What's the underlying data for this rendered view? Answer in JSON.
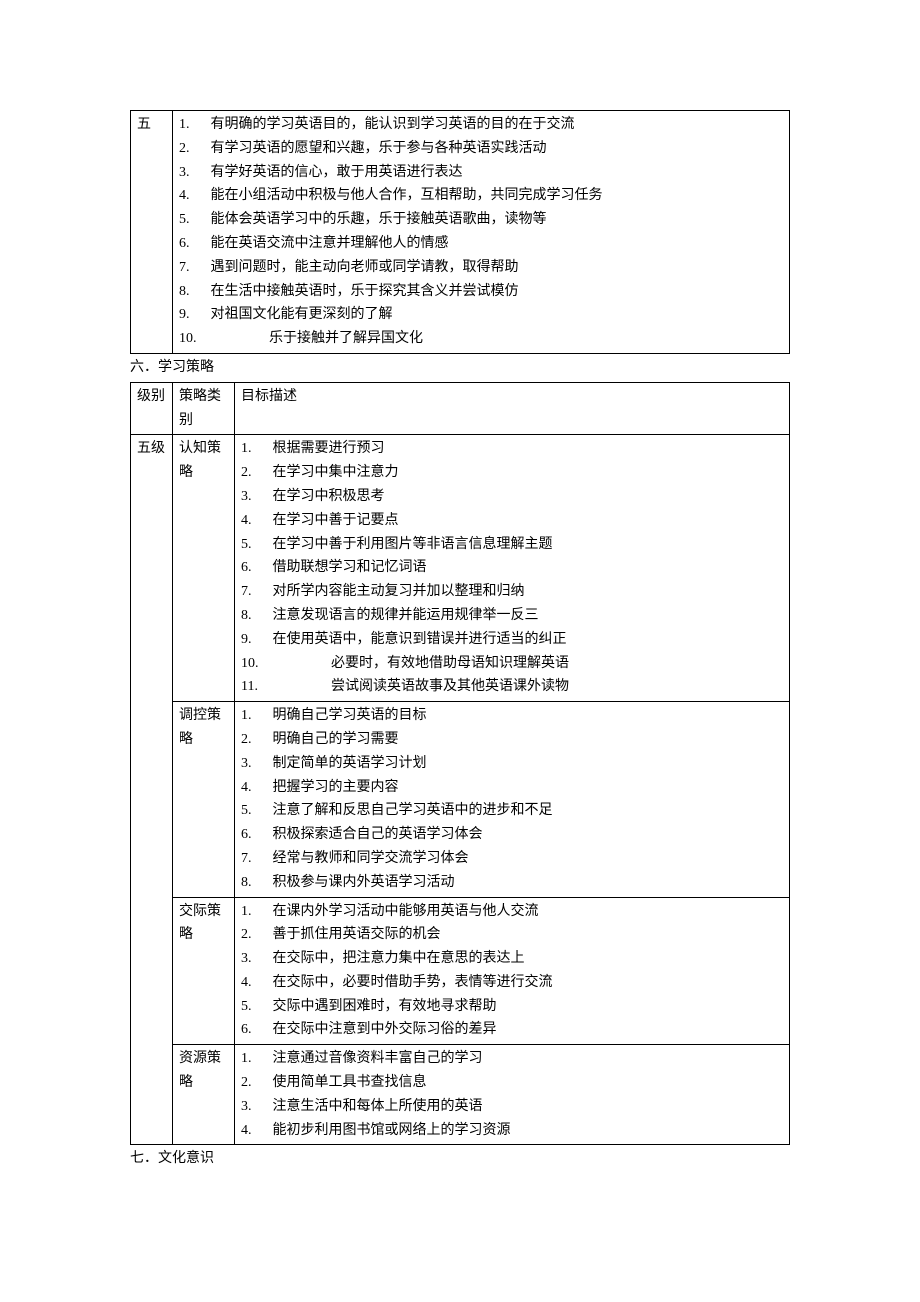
{
  "table1": {
    "level": "五",
    "items": [
      "有明确的学习英语目的，能认识到学习英语的目的在于交流",
      "有学习英语的愿望和兴趣，乐于参与各种英语实践活动",
      "有学好英语的信心，敢于用英语进行表达",
      "能在小组活动中积极与他人合作，互相帮助，共同完成学习任务",
      "能体会英语学习中的乐趣，乐于接触英语歌曲，读物等",
      "能在英语交流中注意并理解他人的情感",
      "遇到问题时，能主动向老师或同学请教，取得帮助",
      "在生活中接触英语时，乐于探究其含义并尝试模仿",
      "对祖国文化能有更深刻的了解",
      "乐于接触并了解异国文化"
    ]
  },
  "heading6": "六．学习策略",
  "table2": {
    "headers": {
      "level": "级别",
      "category": "策略类别",
      "desc": "目标描述"
    },
    "level": "五级",
    "rows": [
      {
        "category": "认知策略",
        "items": [
          "根据需要进行预习",
          "在学习中集中注意力",
          "在学习中积极思考",
          "在学习中善于记要点",
          "在学习中善于利用图片等非语言信息理解主题",
          "借助联想学习和记忆词语",
          "对所学内容能主动复习并加以整理和归纳",
          "注意发现语言的规律并能运用规律举一反三",
          "在使用英语中，能意识到错误并进行适当的纠正",
          "必要时，有效地借助母语知识理解英语",
          "尝试阅读英语故事及其他英语课外读物"
        ]
      },
      {
        "category": "调控策略",
        "items": [
          "明确自己学习英语的目标",
          "明确自己的学习需要",
          "制定简单的英语学习计划",
          "把握学习的主要内容",
          "注意了解和反思自己学习英语中的进步和不足",
          "积极探索适合自己的英语学习体会",
          "经常与教师和同学交流学习体会",
          "积极参与课内外英语学习活动"
        ]
      },
      {
        "category": "交际策略",
        "items": [
          "在课内外学习活动中能够用英语与他人交流",
          "善于抓住用英语交际的机会",
          "在交际中，把注意力集中在意思的表达上",
          "在交际中，必要时借助手势，表情等进行交流",
          "交际中遇到困难时，有效地寻求帮助",
          "在交际中注意到中外交际习俗的差异"
        ]
      },
      {
        "category": "资源策略",
        "items": [
          "注意通过音像资料丰富自己的学习",
          "使用简单工具书查找信息",
          "注意生活中和每体上所使用的英语",
          "能初步利用图书馆或网络上的学习资源"
        ]
      }
    ]
  },
  "heading7": "七．文化意识"
}
